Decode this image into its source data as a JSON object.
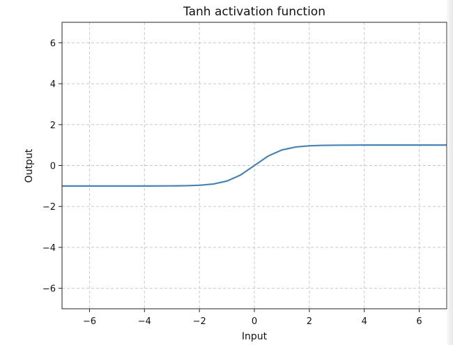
{
  "chart_data": {
    "type": "line",
    "title": "Tanh activation function",
    "xlabel": "Input",
    "ylabel": "Output",
    "xlim": [
      -7,
      7
    ],
    "ylim": [
      -7,
      7
    ],
    "x_ticks": [
      -6,
      -4,
      -2,
      0,
      2,
      4,
      6
    ],
    "y_ticks": [
      -6,
      -4,
      -2,
      0,
      2,
      4,
      6
    ],
    "x_tick_labels": [
      "−6",
      "−4",
      "−2",
      "0",
      "2",
      "4",
      "6"
    ],
    "y_tick_labels": [
      "−6",
      "−4",
      "−2",
      "0",
      "2",
      "4",
      "6"
    ],
    "grid": true,
    "series": [
      {
        "color": "#4682b4",
        "x": [
          -7,
          -6,
          -5,
          -4,
          -3,
          -2.5,
          -2,
          -1.5,
          -1,
          -0.5,
          0,
          0.5,
          1,
          1.5,
          2,
          2.5,
          3,
          4,
          5,
          6,
          7
        ],
        "y": [
          -1.0,
          -1.0,
          -0.9999,
          -0.9993,
          -0.9951,
          -0.9866,
          -0.964,
          -0.9051,
          -0.7616,
          -0.4621,
          0,
          0.4621,
          0.7616,
          0.9051,
          0.964,
          0.9866,
          0.9951,
          0.9993,
          0.9999,
          1.0,
          1.0
        ]
      }
    ]
  }
}
